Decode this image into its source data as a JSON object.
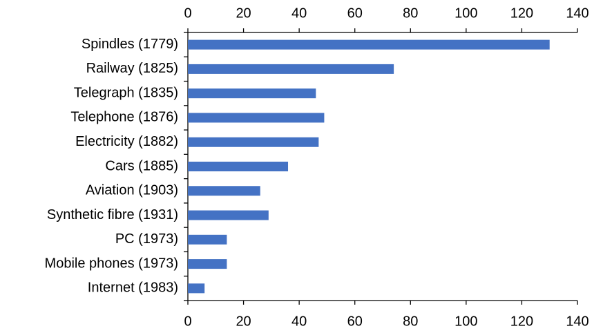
{
  "chart_data": {
    "type": "bar",
    "orientation": "horizontal",
    "categories": [
      "Spindles (1779)",
      "Railway (1825)",
      "Telegraph (1835)",
      "Telephone (1876)",
      "Electricity (1882)",
      "Cars (1885)",
      "Aviation (1903)",
      "Synthetic fibre (1931)",
      "PC (1973)",
      "Mobile phones (1973)",
      "Internet (1983)"
    ],
    "values": [
      130,
      74,
      46,
      49,
      47,
      36,
      26,
      29,
      14,
      14,
      6
    ],
    "color": "#4472c4",
    "xlim": [
      0,
      140
    ],
    "xticks": [
      0,
      20,
      40,
      60,
      80,
      100,
      120,
      140
    ],
    "x_axis_positions": [
      "top",
      "bottom"
    ],
    "grid": false
  }
}
